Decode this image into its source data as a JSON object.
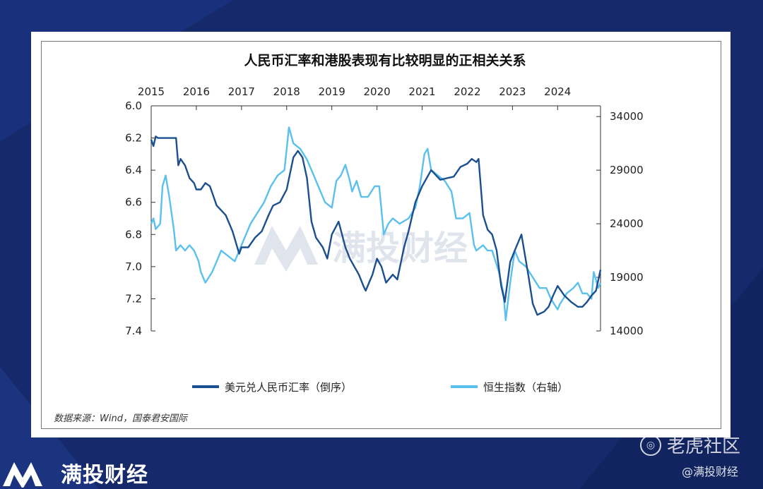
{
  "footer": {
    "brand": "满投财经",
    "watermark_text": "满投财经",
    "site": "老虎社区",
    "handle": "@满投财经"
  },
  "chart_data": {
    "type": "line",
    "title": "人民币汇率和港股表现有比较明显的正相关关系",
    "source": "数据来源：Wind，国泰君安国际",
    "x_ticks": [
      "2015",
      "2016",
      "2017",
      "2018",
      "2019",
      "2020",
      "2021",
      "2022",
      "2023",
      "2024"
    ],
    "x_range": [
      2015.0,
      2024.95
    ],
    "y_left": {
      "ticks": [
        "6.0",
        "6.2",
        "6.4",
        "6.6",
        "6.8",
        "7.0",
        "7.2",
        "7.4"
      ],
      "range": [
        6.0,
        7.4
      ],
      "inverted": true
    },
    "y_right": {
      "ticks": [
        "34000",
        "29000",
        "24000",
        "19000",
        "14000"
      ],
      "range": [
        14000,
        35000
      ]
    },
    "grid": false,
    "legend_position": "bottom",
    "colors": {
      "usdcny": "#1b4f8f",
      "hsi": "#5bc1ec",
      "axis": "#333333"
    },
    "series": [
      {
        "name": "美元兑人民币汇率（倒序）",
        "axis": "left",
        "x": [
          2015.0,
          2015.05,
          2015.1,
          2015.15,
          2015.2,
          2015.3,
          2015.4,
          2015.55,
          2015.6,
          2015.65,
          2015.75,
          2015.85,
          2015.95,
          2016.0,
          2016.1,
          2016.2,
          2016.3,
          2016.45,
          2016.55,
          2016.65,
          2016.8,
          2016.95,
          2017.0,
          2017.15,
          2017.3,
          2017.45,
          2017.6,
          2017.7,
          2017.85,
          2018.0,
          2018.15,
          2018.25,
          2018.35,
          2018.45,
          2018.55,
          2018.65,
          2018.8,
          2018.9,
          2019.0,
          2019.15,
          2019.3,
          2019.4,
          2019.5,
          2019.6,
          2019.7,
          2019.75,
          2019.9,
          2020.0,
          2020.1,
          2020.2,
          2020.35,
          2020.45,
          2020.6,
          2020.7,
          2020.85,
          2021.0,
          2021.2,
          2021.4,
          2021.55,
          2021.7,
          2021.85,
          2022.0,
          2022.1,
          2022.2,
          2022.25,
          2022.35,
          2022.45,
          2022.55,
          2022.65,
          2022.75,
          2022.83,
          2022.95,
          2023.05,
          2023.2,
          2023.35,
          2023.45,
          2023.55,
          2023.7,
          2023.8,
          2023.9,
          2024.0,
          2024.15,
          2024.3,
          2024.45,
          2024.55,
          2024.65,
          2024.75,
          2024.85,
          2024.95
        ],
        "values": [
          6.21,
          6.25,
          6.19,
          6.2,
          6.2,
          6.2,
          6.2,
          6.2,
          6.37,
          6.33,
          6.37,
          6.45,
          6.48,
          6.52,
          6.52,
          6.48,
          6.5,
          6.62,
          6.65,
          6.68,
          6.78,
          6.92,
          6.88,
          6.88,
          6.82,
          6.78,
          6.68,
          6.62,
          6.6,
          6.52,
          6.32,
          6.28,
          6.32,
          6.45,
          6.72,
          6.82,
          6.88,
          6.95,
          6.8,
          6.72,
          6.88,
          6.95,
          7.0,
          7.05,
          7.12,
          7.15,
          7.05,
          6.95,
          7.0,
          7.1,
          7.05,
          7.08,
          6.88,
          6.78,
          6.6,
          6.5,
          6.4,
          6.46,
          6.45,
          6.44,
          6.38,
          6.36,
          6.33,
          6.35,
          6.33,
          6.68,
          6.77,
          6.8,
          6.9,
          7.12,
          7.22,
          6.97,
          6.9,
          6.8,
          7.05,
          7.23,
          7.3,
          7.28,
          7.25,
          7.18,
          7.12,
          7.18,
          7.22,
          7.25,
          7.25,
          7.22,
          7.18,
          7.15,
          7.02
        ]
      },
      {
        "name": "恒生指数（右轴）",
        "axis": "right",
        "x": [
          2015.0,
          2015.05,
          2015.1,
          2015.2,
          2015.25,
          2015.32,
          2015.4,
          2015.5,
          2015.55,
          2015.65,
          2015.75,
          2015.85,
          2015.95,
          2016.05,
          2016.1,
          2016.2,
          2016.35,
          2016.45,
          2016.55,
          2016.7,
          2016.85,
          2017.0,
          2017.2,
          2017.35,
          2017.5,
          2017.65,
          2017.8,
          2017.95,
          2018.05,
          2018.15,
          2018.3,
          2018.45,
          2018.6,
          2018.75,
          2018.85,
          2019.0,
          2019.1,
          2019.2,
          2019.3,
          2019.4,
          2019.45,
          2019.55,
          2019.65,
          2019.8,
          2019.95,
          2020.05,
          2020.15,
          2020.25,
          2020.35,
          2020.5,
          2020.7,
          2020.85,
          2020.95,
          2021.05,
          2021.12,
          2021.2,
          2021.35,
          2021.5,
          2021.65,
          2021.75,
          2021.9,
          2022.05,
          2022.15,
          2022.2,
          2022.35,
          2022.45,
          2022.55,
          2022.7,
          2022.8,
          2022.85,
          2022.95,
          2023.05,
          2023.15,
          2023.3,
          2023.45,
          2023.6,
          2023.75,
          2023.85,
          2024.0,
          2024.05,
          2024.2,
          2024.35,
          2024.45,
          2024.55,
          2024.65,
          2024.75,
          2024.8,
          2024.9,
          2024.95
        ],
        "values": [
          24000,
          24500,
          23500,
          24000,
          27500,
          28500,
          26500,
          23500,
          21500,
          22000,
          21500,
          22000,
          21500,
          20500,
          19500,
          18500,
          19500,
          20500,
          21500,
          21000,
          20500,
          22000,
          24000,
          25000,
          26000,
          27500,
          28500,
          29000,
          33000,
          31500,
          31000,
          30000,
          28500,
          27000,
          26000,
          25500,
          28000,
          28500,
          29500,
          28000,
          27000,
          28000,
          26500,
          26500,
          27500,
          27500,
          23000,
          24000,
          24500,
          24000,
          24500,
          25500,
          27500,
          30500,
          31000,
          29000,
          28500,
          28000,
          27000,
          24500,
          24500,
          25000,
          22000,
          21500,
          22000,
          21500,
          21500,
          19500,
          17500,
          15000,
          18500,
          21500,
          20500,
          20000,
          19000,
          18000,
          18000,
          17000,
          16000,
          16500,
          17500,
          18000,
          18500,
          17500,
          17500,
          17000,
          19500,
          18000,
          18500
        ]
      }
    ]
  }
}
